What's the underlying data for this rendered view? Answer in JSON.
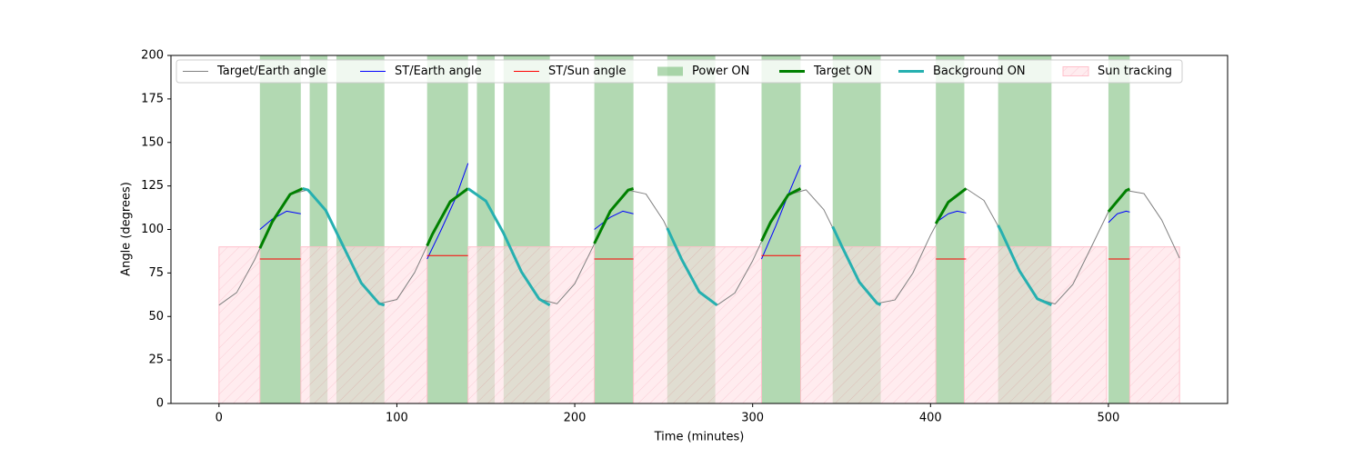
{
  "chart_data": {
    "type": "line",
    "xlabel": "Time (minutes)",
    "ylabel": "Angle (degrees)",
    "xlim": [
      -27,
      567
    ],
    "ylim": [
      0,
      200
    ],
    "xticks": [
      0,
      100,
      200,
      300,
      400,
      500
    ],
    "yticks": [
      0,
      25,
      50,
      75,
      100,
      125,
      150,
      175,
      200
    ],
    "legend": "upper left",
    "series": [
      {
        "name": "Target/Earth angle",
        "type": "line",
        "color": "#808080",
        "linewidth": 1,
        "x": [
          0,
          10,
          20,
          30,
          40,
          50,
          60,
          70,
          80,
          90,
          100,
          110,
          120,
          130,
          140,
          150,
          160,
          170,
          180,
          190,
          200,
          210,
          220,
          230,
          240,
          250,
          260,
          270,
          280,
          290,
          300,
          310,
          320,
          330,
          340,
          350,
          360,
          370,
          380,
          390,
          400,
          410,
          420,
          430,
          440,
          450,
          460,
          470,
          480,
          490,
          500,
          510,
          520,
          530,
          540
        ],
        "values": [
          56.5,
          63.8,
          82.5,
          104.5,
          120.2,
          122.7,
          111.0,
          90.1,
          69.2,
          57.4,
          59.7,
          75.3,
          97.3,
          116.0,
          123.5,
          116.4,
          97.8,
          75.7,
          60.0,
          57.3,
          68.8,
          89.6,
          110.6,
          122.6,
          120.4,
          104.9,
          83.0,
          64.1,
          56.5,
          63.5,
          82.0,
          104.0,
          119.9,
          122.8,
          111.4,
          90.6,
          69.7,
          57.5,
          59.5,
          74.8,
          96.7,
          115.7,
          123.5,
          116.7,
          98.3,
          76.2,
          60.2,
          57.2,
          68.4,
          89.1,
          110.2,
          122.4,
          120.6,
          105.4,
          83.5
        ]
      },
      {
        "name": "ST/Earth angle",
        "type": "line",
        "color": "#0000ff",
        "linewidth": 1,
        "x": [
          23,
          30,
          38,
          46,
          null,
          117,
          125,
          133,
          140,
          null,
          211,
          220,
          227,
          233,
          null,
          305,
          313,
          320,
          327,
          null,
          403,
          410,
          415,
          420,
          null,
          500,
          505,
          510,
          512
        ],
        "values": [
          100,
          106,
          110.5,
          109,
          null,
          83,
          100,
          118,
          138,
          null,
          100,
          107,
          110.5,
          109,
          null,
          83,
          102,
          120,
          137,
          null,
          104,
          109,
          110.5,
          109.5,
          null,
          104,
          109,
          110.5,
          110
        ]
      },
      {
        "name": "ST/Sun angle",
        "type": "line",
        "color": "#ff0000",
        "linewidth": 1,
        "x": [
          23,
          46,
          null,
          117,
          140,
          null,
          211,
          233,
          null,
          305,
          327,
          null,
          403,
          420,
          null,
          500,
          512
        ],
        "values": [
          83,
          83,
          null,
          85,
          85,
          null,
          83,
          83,
          null,
          85,
          85,
          null,
          83,
          83,
          null,
          83,
          83
        ]
      },
      {
        "name": "Power ON",
        "type": "span",
        "color": "#008000",
        "opacity": 0.3,
        "spans": [
          [
            23,
            46
          ],
          [
            51,
            61
          ],
          [
            66,
            93
          ],
          [
            117,
            140
          ],
          [
            145,
            155
          ],
          [
            160,
            186
          ],
          [
            211,
            233
          ],
          [
            252,
            279
          ],
          [
            305,
            327
          ],
          [
            345,
            372
          ],
          [
            403,
            419
          ],
          [
            438,
            468
          ],
          [
            500,
            512
          ]
        ]
      },
      {
        "name": "Target ON",
        "type": "line",
        "color": "#008000",
        "linewidth": 3,
        "x": [
          23,
          30,
          40,
          47,
          null,
          117,
          120,
          130,
          140,
          null,
          211,
          220,
          230,
          233,
          null,
          305,
          310,
          320,
          327,
          null,
          403,
          410,
          420,
          null,
          500,
          510,
          512
        ],
        "values": [
          89.2,
          104.5,
          120.2,
          123.5,
          null,
          90.6,
          97.3,
          116.0,
          123.5,
          null,
          91.9,
          110.6,
          122.6,
          123.5,
          null,
          93.3,
          104.0,
          119.9,
          123.5,
          null,
          103.3,
          115.7,
          123.5,
          null,
          110.2,
          122.4,
          123.3
        ]
      },
      {
        "name": "Background ON",
        "type": "line",
        "color": "#26b0b0",
        "linewidth": 3,
        "x": [
          47,
          50,
          60,
          70,
          80,
          90,
          93,
          null,
          140,
          150,
          160,
          170,
          180,
          186,
          null,
          252,
          260,
          270,
          280,
          null,
          345,
          350,
          360,
          370,
          372,
          null,
          438,
          440,
          450,
          460,
          468
        ],
        "values": [
          123.5,
          122.7,
          111.0,
          90.1,
          69.2,
          57.4,
          56.5,
          null,
          123.5,
          116.4,
          97.8,
          75.7,
          60.0,
          56.5,
          null,
          100.8,
          83.0,
          64.1,
          56.5,
          null,
          101.6,
          90.6,
          69.7,
          57.5,
          56.7,
          null,
          102.4,
          98.3,
          76.2,
          60.2,
          56.6
        ]
      },
      {
        "name": "Sun tracking",
        "type": "hatched_span",
        "color": "#ffc0cb",
        "y": [
          0,
          90
        ],
        "spans": [
          [
            0,
            23
          ],
          [
            46,
            117
          ],
          [
            140,
            211
          ],
          [
            233,
            305
          ],
          [
            327,
            403
          ],
          [
            419,
            499
          ],
          [
            512,
            540
          ]
        ]
      }
    ]
  }
}
